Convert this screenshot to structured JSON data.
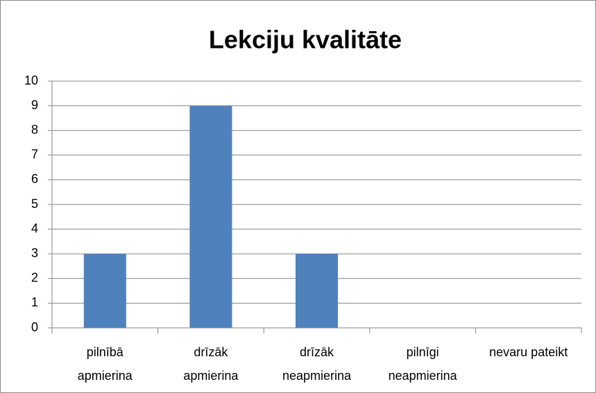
{
  "chart_data": {
    "type": "bar",
    "title": "Lekciju kvalitāte",
    "categories": [
      "pilnībā apmierina",
      "drīzāk apmierina",
      "drīzāk neapmierina",
      "pilnīgi neapmierina",
      "nevaru pateikt"
    ],
    "values": [
      3,
      9,
      3,
      0,
      0
    ],
    "color": "#4f81bd",
    "ylim": [
      0,
      10
    ],
    "yticks": [
      0,
      1,
      2,
      3,
      4,
      5,
      6,
      7,
      8,
      9,
      10
    ],
    "grid": true
  }
}
